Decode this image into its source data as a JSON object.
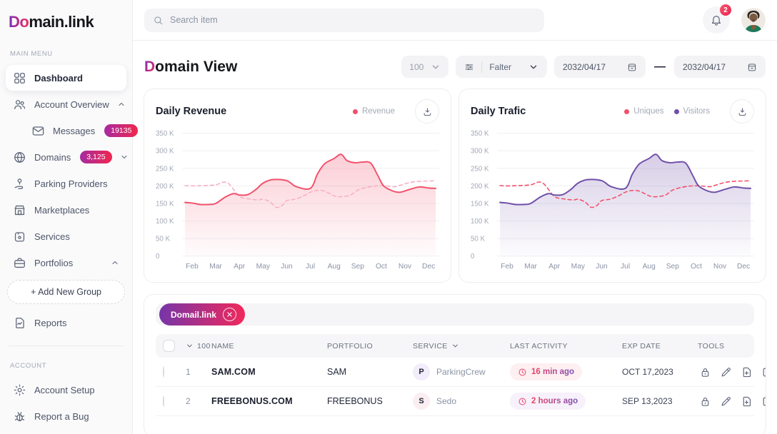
{
  "colors": {
    "accent_gradient_start": "#7b2fb8",
    "accent_gradient_end": "#ec2d5e",
    "red_line": "#f2506b",
    "pink_dashed": "#f6b0c2",
    "purple_line": "#6f4fa8",
    "notification_red": "#e8244f"
  },
  "sidebar": {
    "logo_accent": "Do",
    "logo_rest": "main.link",
    "sections": [
      {
        "label": "MAIN MENU",
        "items": [
          {
            "label": "Dashboard",
            "icon": "grid-icon",
            "active": true
          },
          {
            "label": "Account Overview",
            "icon": "users-icon",
            "chevron": "up"
          },
          {
            "label": "Messages",
            "icon": "mail-icon",
            "badge": "19135",
            "indent": true
          },
          {
            "label": "Domains",
            "icon": "globe-icon",
            "badge": "3,125",
            "chevron": "down"
          },
          {
            "label": "Parking Providers",
            "icon": "parking-icon"
          },
          {
            "label": "Marketplaces",
            "icon": "store-icon"
          },
          {
            "label": "Services",
            "icon": "box-icon"
          },
          {
            "label": "Portfolios",
            "icon": "briefcase-icon",
            "chevron": "up"
          },
          {
            "label": "+ Add New Group",
            "type": "dashed-button"
          },
          {
            "label": "Reports",
            "icon": "report-icon"
          }
        ]
      },
      {
        "label": "ACCOUNT",
        "items": [
          {
            "label": "Account Setup",
            "icon": "gear-icon"
          },
          {
            "label": "Report a Bug",
            "icon": "bug-icon"
          }
        ]
      }
    ]
  },
  "topbar": {
    "search_placeholder": "Search item",
    "notification_count": "2"
  },
  "header": {
    "title_accent": "D",
    "title_rest": "omain View",
    "page_size": "100",
    "filter_label": "Falter",
    "date_from": "2032/04/17",
    "date_to": "2032/04/17"
  },
  "chart_data": [
    {
      "type": "line",
      "title": "Daily Revenue",
      "legend": [
        {
          "label": "Revenue",
          "color": "#f2506b"
        }
      ],
      "x_labels": [
        "Feb",
        "Mar",
        "Apr",
        "May",
        "Jun",
        "Jul",
        "Aug",
        "Sep",
        "Oct",
        "Nov",
        "Dec"
      ],
      "y_ticks": [
        "350 K",
        "300 K",
        "250 K",
        "200 K",
        "150 K",
        "100 K",
        "50 K",
        "0"
      ],
      "ylim": [
        0,
        350
      ],
      "unit": "K",
      "grid": "horizontal",
      "legend_position": "top-right",
      "series": [
        {
          "name": "Revenue",
          "style": "solid",
          "color": "#f2506b",
          "fill": true,
          "points": [
            [
              -0.3,
              153
            ],
            [
              0,
              151
            ],
            [
              0.35,
              147
            ],
            [
              0.7,
              147
            ],
            [
              1,
              150
            ],
            [
              1.4,
              168
            ],
            [
              1.75,
              178
            ],
            [
              2,
              174
            ],
            [
              2.35,
              175
            ],
            [
              2.7,
              190
            ],
            [
              3,
              208
            ],
            [
              3.4,
              218
            ],
            [
              4,
              215
            ],
            [
              4.4,
              198
            ],
            [
              5,
              193
            ],
            [
              5.3,
              234
            ],
            [
              5.6,
              263
            ],
            [
              6,
              278
            ],
            [
              6.3,
              290
            ],
            [
              6.55,
              272
            ],
            [
              6.9,
              266
            ],
            [
              7.2,
              268
            ],
            [
              7.55,
              265
            ],
            [
              7.85,
              230
            ],
            [
              8.1,
              200
            ],
            [
              8.5,
              185
            ],
            [
              8.8,
              182
            ],
            [
              9.2,
              190
            ],
            [
              9.6,
              197
            ],
            [
              10,
              194
            ],
            [
              10.3,
              193
            ]
          ]
        },
        {
          "name": "",
          "style": "dashed",
          "color": "#f6b0c2",
          "fill": false,
          "points": [
            [
              -0.3,
              201
            ],
            [
              0,
              200
            ],
            [
              0.5,
              201
            ],
            [
              1,
              203
            ],
            [
              1.35,
              211
            ],
            [
              1.6,
              203
            ],
            [
              2,
              170
            ],
            [
              2.4,
              163
            ],
            [
              2.8,
              160
            ],
            [
              3,
              162
            ],
            [
              3.3,
              154
            ],
            [
              3.55,
              139
            ],
            [
              3.8,
              144
            ],
            [
              4,
              158
            ],
            [
              4.35,
              162
            ],
            [
              4.7,
              171
            ],
            [
              5,
              182
            ],
            [
              5.3,
              187
            ],
            [
              5.6,
              185
            ],
            [
              6,
              172
            ],
            [
              6.3,
              169
            ],
            [
              6.7,
              174
            ],
            [
              7,
              188
            ],
            [
              7.4,
              196
            ],
            [
              7.8,
              200
            ],
            [
              8.2,
              200
            ],
            [
              8.6,
              198
            ],
            [
              9,
              206
            ],
            [
              9.4,
              212
            ],
            [
              10,
              214
            ],
            [
              10.3,
              215
            ]
          ]
        }
      ]
    },
    {
      "type": "line",
      "title": "Daily Trafic",
      "legend": [
        {
          "label": "Uniques",
          "color": "#f2506b"
        },
        {
          "label": "Visitors",
          "color": "#6f4fa8"
        }
      ],
      "x_labels": [
        "Feb",
        "Mar",
        "Apr",
        "May",
        "Jun",
        "Jul",
        "Aug",
        "Sep",
        "Oct",
        "Nov",
        "Dec"
      ],
      "y_ticks": [
        "350 K",
        "300 K",
        "250 K",
        "200 K",
        "150 K",
        "100 K",
        "50 K",
        "0"
      ],
      "ylim": [
        0,
        350
      ],
      "unit": "K",
      "grid": "horizontal",
      "legend_position": "top-right",
      "series": [
        {
          "name": "Visitors",
          "style": "solid",
          "color": "#6f4fa8",
          "fill": true,
          "points": [
            [
              -0.3,
              153
            ],
            [
              0,
              151
            ],
            [
              0.35,
              147
            ],
            [
              0.7,
              147
            ],
            [
              1,
              150
            ],
            [
              1.4,
              168
            ],
            [
              1.75,
              178
            ],
            [
              2,
              174
            ],
            [
              2.35,
              175
            ],
            [
              2.7,
              190
            ],
            [
              3,
              208
            ],
            [
              3.4,
              218
            ],
            [
              4,
              215
            ],
            [
              4.4,
              198
            ],
            [
              5,
              193
            ],
            [
              5.3,
              234
            ],
            [
              5.6,
              263
            ],
            [
              6,
              278
            ],
            [
              6.3,
              290
            ],
            [
              6.55,
              272
            ],
            [
              6.9,
              266
            ],
            [
              7.2,
              268
            ],
            [
              7.55,
              265
            ],
            [
              7.85,
              230
            ],
            [
              8.1,
              200
            ],
            [
              8.5,
              185
            ],
            [
              8.8,
              182
            ],
            [
              9.2,
              190
            ],
            [
              9.6,
              197
            ],
            [
              10,
              194
            ],
            [
              10.3,
              193
            ]
          ]
        },
        {
          "name": "Uniques",
          "style": "dashed",
          "color": "#f2506b",
          "fill": false,
          "points": [
            [
              -0.3,
              201
            ],
            [
              0,
              200
            ],
            [
              0.5,
              201
            ],
            [
              1,
              203
            ],
            [
              1.35,
              211
            ],
            [
              1.6,
              203
            ],
            [
              2,
              170
            ],
            [
              2.4,
              163
            ],
            [
              2.8,
              160
            ],
            [
              3,
              162
            ],
            [
              3.3,
              154
            ],
            [
              3.55,
              139
            ],
            [
              3.8,
              144
            ],
            [
              4,
              158
            ],
            [
              4.35,
              162
            ],
            [
              4.7,
              171
            ],
            [
              5,
              182
            ],
            [
              5.3,
              187
            ],
            [
              5.6,
              185
            ],
            [
              6,
              172
            ],
            [
              6.3,
              169
            ],
            [
              6.7,
              174
            ],
            [
              7,
              188
            ],
            [
              7.4,
              196
            ],
            [
              7.8,
              200
            ],
            [
              8.2,
              200
            ],
            [
              8.6,
              198
            ],
            [
              9,
              206
            ],
            [
              9.4,
              212
            ],
            [
              10,
              214
            ],
            [
              10.3,
              215
            ]
          ]
        }
      ]
    }
  ],
  "table": {
    "filter_chip": "Domail.link",
    "headers": {
      "count": "100",
      "name": "NAME",
      "portfolio": "PORTFOLIO",
      "service": "SERVICE",
      "last_activity": "LAST ACTIVITY",
      "exp_date": "EXP DATE",
      "tools": "TOOLS"
    },
    "rows": [
      {
        "num": "1",
        "name": "SAM.COM",
        "portfolio": "SAM",
        "service_initial": "P",
        "service": "ParkingCrew",
        "badge_bg": "#f2edfa",
        "last_activity": "16 min ago",
        "pill_bg": "#fdeff2",
        "exp_date": "OCT 17,2023"
      },
      {
        "num": "2",
        "name": "FREEBONUS.COM",
        "portfolio": "FREEBONUS",
        "service_initial": "S",
        "service": "Sedo",
        "badge_bg": "#fbeef1",
        "last_activity": "2 hours ago",
        "pill_bg": "#f7f1fb",
        "exp_date": "SEP 13,2023"
      }
    ],
    "tools_icons": [
      "lock-icon",
      "edit-icon",
      "file-add-icon",
      "note-add-icon"
    ]
  }
}
